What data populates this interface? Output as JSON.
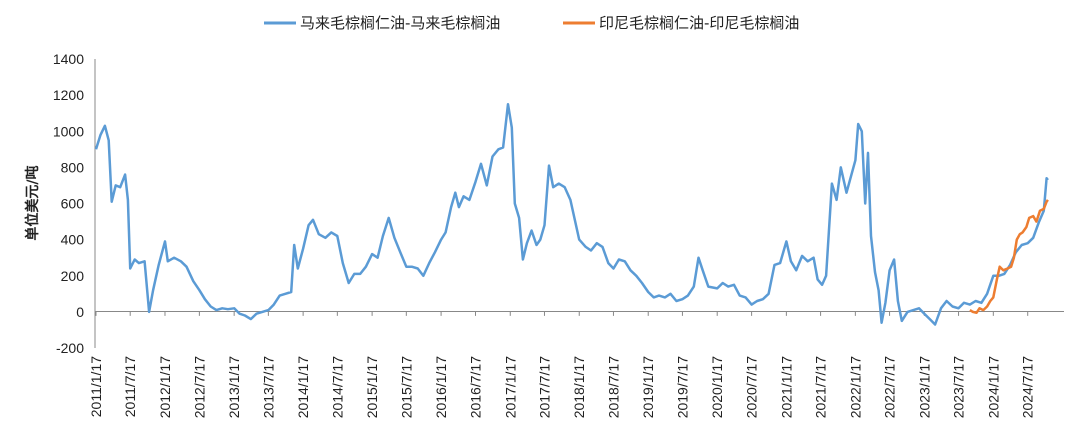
{
  "chart_data": {
    "type": "line",
    "title": "",
    "xlabel": "",
    "ylabel": "单位美元/吨",
    "ylim": [
      -200,
      1400
    ],
    "yticks": [
      "-200",
      "0",
      "200",
      "400",
      "600",
      "800",
      "1000",
      "1200",
      "1400"
    ],
    "xlim": [
      "2011-01-17",
      "2025-01-25"
    ],
    "xticks": [
      "2011/1/17",
      "2011/7/17",
      "2012/1/17",
      "2012/7/17",
      "2013/1/17",
      "2013/7/17",
      "2014/1/17",
      "2014/7/17",
      "2015/1/17",
      "2015/7/17",
      "2016/1/17",
      "2016/7/17",
      "2017/1/17",
      "2017/7/17",
      "2018/1/17",
      "2018/7/17",
      "2019/1/17",
      "2019/7/17",
      "2020/1/17",
      "2020/7/17",
      "2021/1/17",
      "2021/7/17",
      "2022/1/17",
      "2022/7/17",
      "2023/1/17",
      "2023/7/17",
      "2024/1/17",
      "2024/7/17"
    ],
    "grid": false,
    "legend_position": "top",
    "series": [
      {
        "name": "马来毛棕榈仁油-马来毛棕榈油",
        "color": "#5B9BD5",
        "points": [
          [
            "2011-01-17",
            900
          ],
          [
            "2011-02-10",
            980
          ],
          [
            "2011-03-05",
            1030
          ],
          [
            "2011-03-25",
            950
          ],
          [
            "2011-04-10",
            610
          ],
          [
            "2011-05-01",
            700
          ],
          [
            "2011-05-25",
            690
          ],
          [
            "2011-06-20",
            760
          ],
          [
            "2011-07-05",
            620
          ],
          [
            "2011-07-17",
            240
          ],
          [
            "2011-08-10",
            290
          ],
          [
            "2011-09-01",
            270
          ],
          [
            "2011-10-01",
            280
          ],
          [
            "2011-10-25",
            0
          ],
          [
            "2011-11-15",
            120
          ],
          [
            "2011-12-15",
            260
          ],
          [
            "2012-01-17",
            390
          ],
          [
            "2012-02-01",
            280
          ],
          [
            "2012-03-05",
            300
          ],
          [
            "2012-04-10",
            280
          ],
          [
            "2012-05-10",
            250
          ],
          [
            "2012-06-15",
            170
          ],
          [
            "2012-07-17",
            120
          ],
          [
            "2012-08-15",
            70
          ],
          [
            "2012-09-15",
            30
          ],
          [
            "2012-10-15",
            10
          ],
          [
            "2012-11-15",
            20
          ],
          [
            "2012-12-15",
            15
          ],
          [
            "2013-01-17",
            20
          ],
          [
            "2013-02-15",
            -10
          ],
          [
            "2013-03-15",
            -20
          ],
          [
            "2013-04-15",
            -40
          ],
          [
            "2013-05-15",
            -10
          ],
          [
            "2013-06-15",
            0
          ],
          [
            "2013-07-17",
            10
          ],
          [
            "2013-08-15",
            40
          ],
          [
            "2013-09-15",
            90
          ],
          [
            "2013-10-15",
            100
          ],
          [
            "2013-11-15",
            110
          ],
          [
            "2013-12-01",
            370
          ],
          [
            "2013-12-20",
            240
          ],
          [
            "2014-01-17",
            350
          ],
          [
            "2014-02-15",
            480
          ],
          [
            "2014-03-10",
            510
          ],
          [
            "2014-04-10",
            430
          ],
          [
            "2014-05-15",
            410
          ],
          [
            "2014-06-15",
            440
          ],
          [
            "2014-07-17",
            420
          ],
          [
            "2014-08-15",
            270
          ],
          [
            "2014-09-15",
            160
          ],
          [
            "2014-10-15",
            210
          ],
          [
            "2014-11-15",
            210
          ],
          [
            "2014-12-15",
            250
          ],
          [
            "2015-01-17",
            320
          ],
          [
            "2015-02-15",
            300
          ],
          [
            "2015-03-15",
            420
          ],
          [
            "2015-04-15",
            520
          ],
          [
            "2015-05-15",
            410
          ],
          [
            "2015-06-15",
            330
          ],
          [
            "2015-07-17",
            250
          ],
          [
            "2015-08-15",
            250
          ],
          [
            "2015-09-15",
            240
          ],
          [
            "2015-10-15",
            200
          ],
          [
            "2015-11-15",
            270
          ],
          [
            "2015-12-15",
            330
          ],
          [
            "2016-01-17",
            400
          ],
          [
            "2016-02-10",
            440
          ],
          [
            "2016-03-10",
            580
          ],
          [
            "2016-04-01",
            660
          ],
          [
            "2016-04-20",
            580
          ],
          [
            "2016-05-15",
            640
          ],
          [
            "2016-06-15",
            620
          ],
          [
            "2016-07-17",
            720
          ],
          [
            "2016-08-15",
            820
          ],
          [
            "2016-09-15",
            700
          ],
          [
            "2016-10-15",
            860
          ],
          [
            "2016-11-15",
            900
          ],
          [
            "2016-12-10",
            910
          ],
          [
            "2017-01-05",
            1150
          ],
          [
            "2017-01-25",
            1020
          ],
          [
            "2017-02-10",
            600
          ],
          [
            "2017-03-05",
            520
          ],
          [
            "2017-03-25",
            290
          ],
          [
            "2017-04-15",
            380
          ],
          [
            "2017-05-10",
            450
          ],
          [
            "2017-06-05",
            370
          ],
          [
            "2017-06-25",
            400
          ],
          [
            "2017-07-17",
            480
          ],
          [
            "2017-08-10",
            810
          ],
          [
            "2017-09-01",
            690
          ],
          [
            "2017-10-01",
            710
          ],
          [
            "2017-11-01",
            690
          ],
          [
            "2017-12-01",
            620
          ],
          [
            "2018-01-17",
            400
          ],
          [
            "2018-02-20",
            360
          ],
          [
            "2018-03-20",
            340
          ],
          [
            "2018-04-20",
            380
          ],
          [
            "2018-05-20",
            360
          ],
          [
            "2018-06-20",
            270
          ],
          [
            "2018-07-17",
            240
          ],
          [
            "2018-08-15",
            290
          ],
          [
            "2018-09-15",
            280
          ],
          [
            "2018-10-15",
            230
          ],
          [
            "2018-11-15",
            200
          ],
          [
            "2018-12-15",
            160
          ],
          [
            "2019-01-17",
            110
          ],
          [
            "2019-02-15",
            80
          ],
          [
            "2019-03-15",
            90
          ],
          [
            "2019-04-15",
            80
          ],
          [
            "2019-05-15",
            100
          ],
          [
            "2019-06-15",
            60
          ],
          [
            "2019-07-17",
            70
          ],
          [
            "2019-08-15",
            90
          ],
          [
            "2019-09-15",
            140
          ],
          [
            "2019-10-10",
            300
          ],
          [
            "2019-11-01",
            230
          ],
          [
            "2019-12-01",
            140
          ],
          [
            "2020-01-17",
            130
          ],
          [
            "2020-02-15",
            160
          ],
          [
            "2020-03-15",
            140
          ],
          [
            "2020-04-15",
            150
          ],
          [
            "2020-05-15",
            90
          ],
          [
            "2020-06-15",
            80
          ],
          [
            "2020-07-17",
            40
          ],
          [
            "2020-08-15",
            60
          ],
          [
            "2020-09-15",
            70
          ],
          [
            "2020-10-15",
            100
          ],
          [
            "2020-11-15",
            260
          ],
          [
            "2020-12-15",
            270
          ],
          [
            "2021-01-17",
            390
          ],
          [
            "2021-02-10",
            280
          ],
          [
            "2021-03-10",
            230
          ],
          [
            "2021-04-10",
            310
          ],
          [
            "2021-05-10",
            280
          ],
          [
            "2021-06-10",
            300
          ],
          [
            "2021-07-01",
            180
          ],
          [
            "2021-07-25",
            150
          ],
          [
            "2021-08-15",
            200
          ],
          [
            "2021-09-15",
            710
          ],
          [
            "2021-10-10",
            620
          ],
          [
            "2021-11-01",
            800
          ],
          [
            "2021-12-01",
            660
          ],
          [
            "2022-01-17",
            840
          ],
          [
            "2022-02-01",
            1040
          ],
          [
            "2022-02-20",
            1000
          ],
          [
            "2022-03-10",
            600
          ],
          [
            "2022-03-25",
            880
          ],
          [
            "2022-04-10",
            420
          ],
          [
            "2022-05-01",
            220
          ],
          [
            "2022-05-20",
            120
          ],
          [
            "2022-06-05",
            -60
          ],
          [
            "2022-06-25",
            50
          ],
          [
            "2022-07-17",
            230
          ],
          [
            "2022-08-10",
            290
          ],
          [
            "2022-08-30",
            60
          ],
          [
            "2022-09-20",
            -50
          ],
          [
            "2022-10-20",
            0
          ],
          [
            "2022-11-20",
            10
          ],
          [
            "2022-12-20",
            20
          ],
          [
            "2023-01-17",
            -10
          ],
          [
            "2023-02-15",
            -40
          ],
          [
            "2023-03-15",
            -70
          ],
          [
            "2023-04-15",
            20
          ],
          [
            "2023-05-15",
            60
          ],
          [
            "2023-06-15",
            30
          ],
          [
            "2023-07-17",
            20
          ],
          [
            "2023-08-15",
            50
          ],
          [
            "2023-09-15",
            40
          ],
          [
            "2023-10-15",
            60
          ],
          [
            "2023-11-15",
            50
          ],
          [
            "2023-12-15",
            100
          ],
          [
            "2024-01-17",
            200
          ],
          [
            "2024-02-15",
            200
          ],
          [
            "2024-03-15",
            210
          ],
          [
            "2024-04-15",
            260
          ],
          [
            "2024-05-15",
            330
          ],
          [
            "2024-06-15",
            370
          ],
          [
            "2024-07-17",
            380
          ],
          [
            "2024-08-15",
            410
          ],
          [
            "2024-09-15",
            500
          ],
          [
            "2024-10-10",
            560
          ],
          [
            "2024-10-25",
            740
          ],
          [
            "2024-11-01",
            730
          ]
        ]
      },
      {
        "name": "印尼毛棕榈仁油-印尼毛棕榈油",
        "color": "#ED7D31",
        "points": [
          [
            "2023-09-15",
            10
          ],
          [
            "2023-10-01",
            0
          ],
          [
            "2023-10-20",
            -5
          ],
          [
            "2023-11-05",
            20
          ],
          [
            "2023-11-25",
            10
          ],
          [
            "2023-12-15",
            30
          ],
          [
            "2024-01-01",
            60
          ],
          [
            "2024-01-17",
            80
          ],
          [
            "2024-02-05",
            180
          ],
          [
            "2024-02-20",
            250
          ],
          [
            "2024-03-10",
            230
          ],
          [
            "2024-04-01",
            240
          ],
          [
            "2024-04-20",
            250
          ],
          [
            "2024-05-05",
            300
          ],
          [
            "2024-05-20",
            400
          ],
          [
            "2024-06-05",
            430
          ],
          [
            "2024-06-20",
            440
          ],
          [
            "2024-07-10",
            470
          ],
          [
            "2024-07-25",
            520
          ],
          [
            "2024-08-15",
            530
          ],
          [
            "2024-09-01",
            500
          ],
          [
            "2024-09-20",
            560
          ],
          [
            "2024-10-10",
            570
          ],
          [
            "2024-10-25",
            610
          ],
          [
            "2024-11-01",
            620
          ]
        ]
      }
    ]
  }
}
